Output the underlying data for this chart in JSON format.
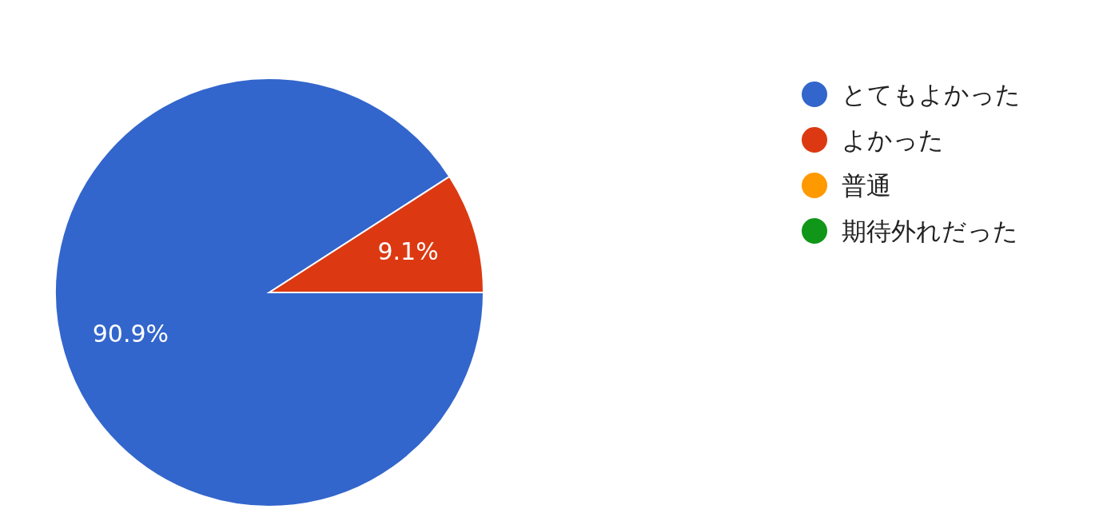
{
  "chart_data": {
    "type": "pie",
    "categories": [
      "とてもよかった",
      "よかった",
      "普通",
      "期待外れだった"
    ],
    "values": [
      90.9,
      9.1,
      0,
      0
    ],
    "colors": [
      "#3366cc",
      "#dc3912",
      "#ff9900",
      "#109618"
    ],
    "value_labels": [
      "90.9%",
      "9.1%",
      null,
      null
    ],
    "legend": "top right"
  }
}
